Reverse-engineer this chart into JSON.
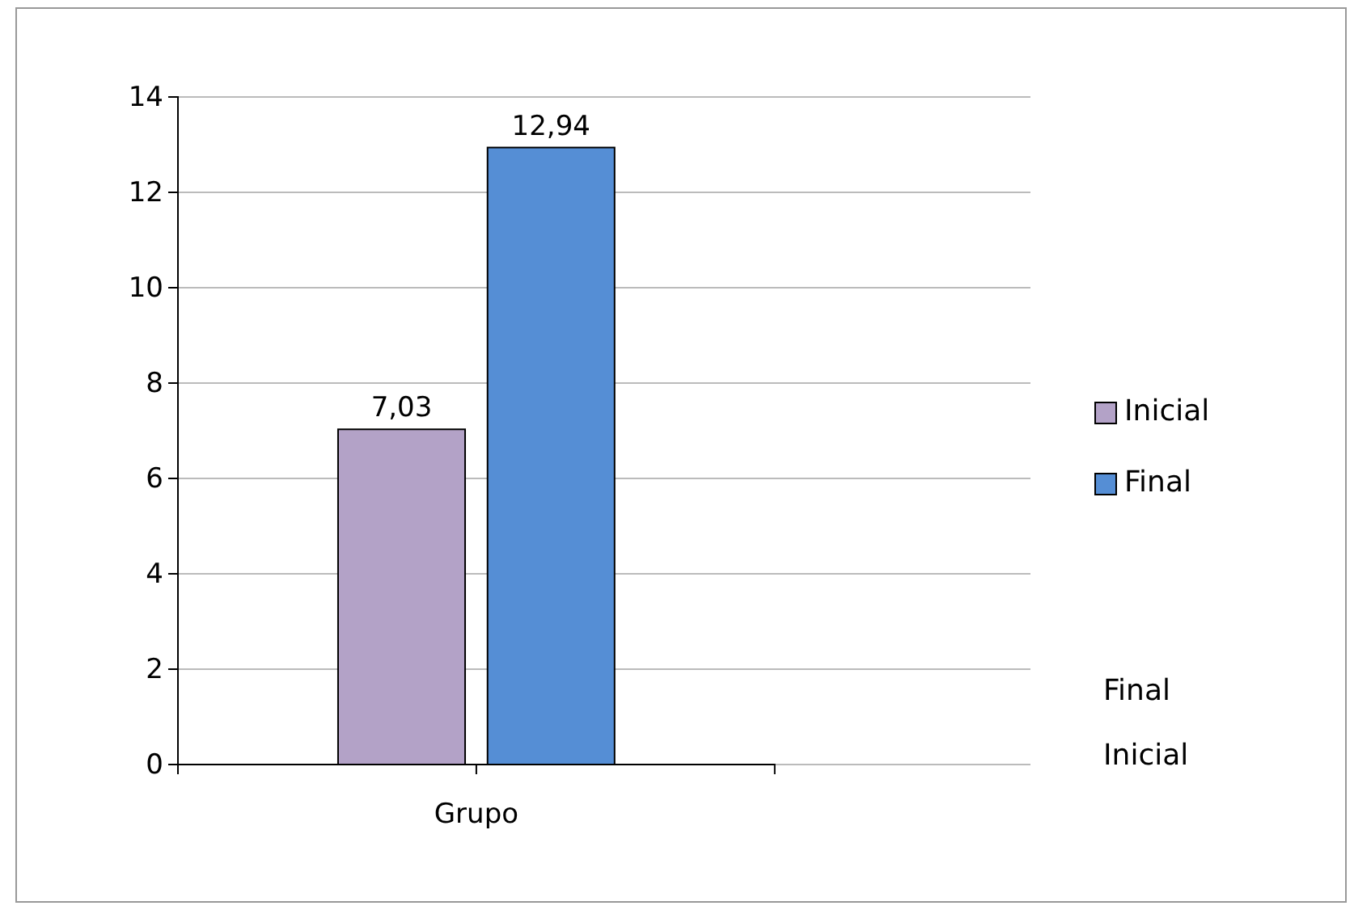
{
  "chart_data": {
    "type": "bar",
    "categories": [
      "Grupo"
    ],
    "series": [
      {
        "name": "Inicial",
        "color": "#b3a2c7",
        "values": [
          7.03
        ],
        "value_labels": [
          "7,03"
        ]
      },
      {
        "name": "Final",
        "color": "#558ed5",
        "values": [
          12.94
        ],
        "value_labels": [
          "12,94"
        ]
      }
    ],
    "ylim": [
      0,
      14
    ],
    "yticks": [
      0,
      2,
      4,
      6,
      8,
      10,
      12,
      14
    ],
    "grid": "y",
    "legend": "right",
    "annotations": [
      "Final",
      "Inicial"
    ]
  }
}
